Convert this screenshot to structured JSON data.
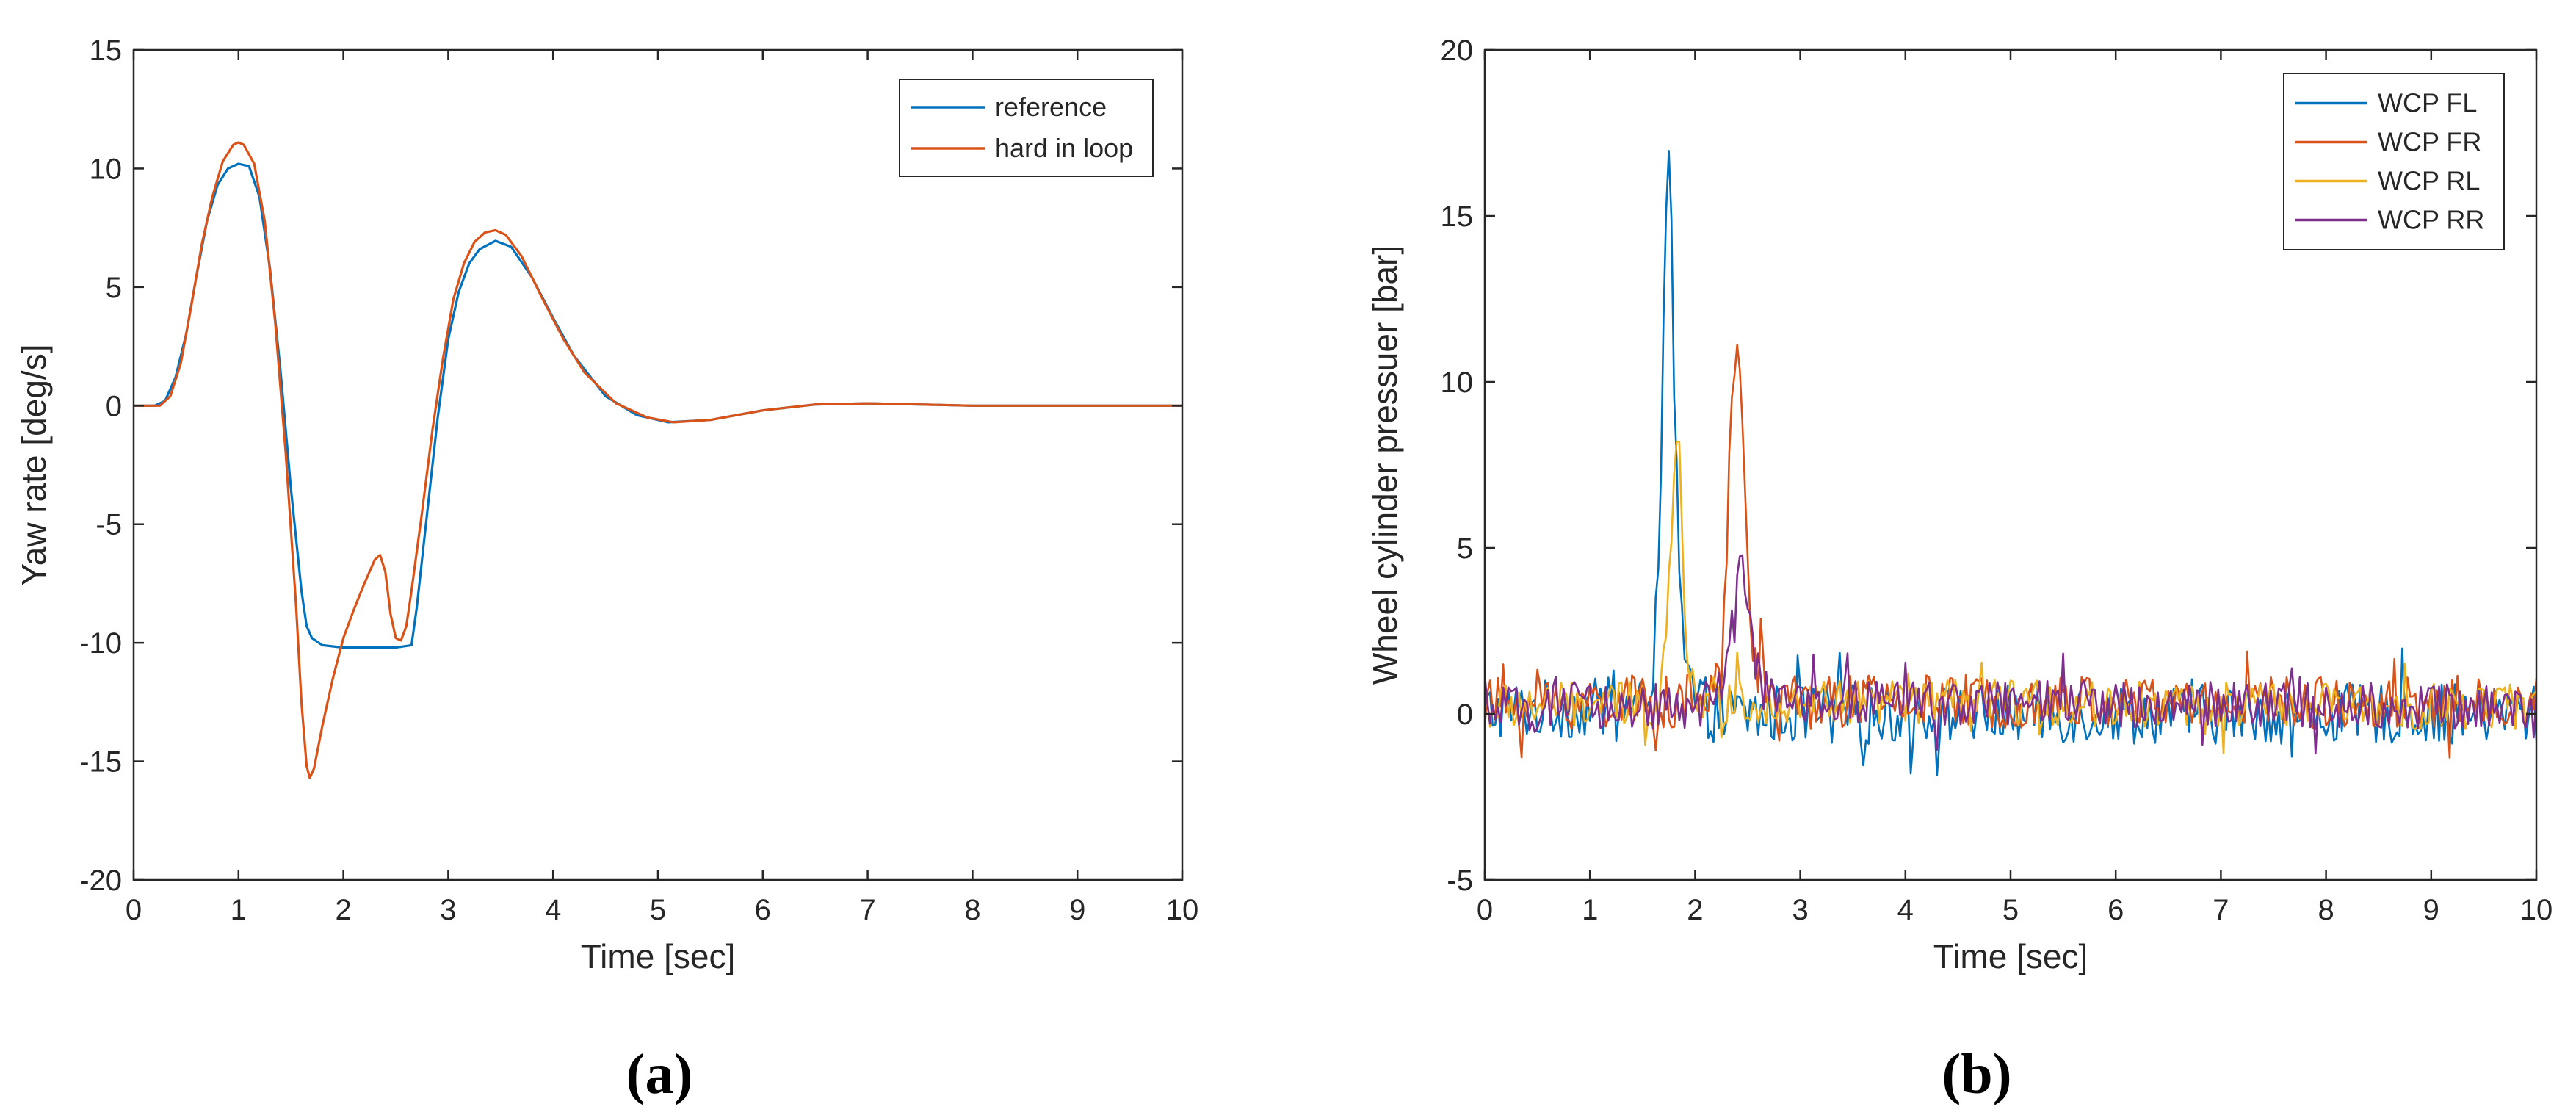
{
  "chart_data": [
    {
      "type": "line",
      "panel_label": "a",
      "xlabel": "Time [sec]",
      "ylabel": "Yaw rate [deg/s]",
      "xlim": [
        0,
        10
      ],
      "ylim": [
        -20,
        15
      ],
      "xticks": [
        0,
        1,
        2,
        3,
        4,
        5,
        6,
        7,
        8,
        9,
        10
      ],
      "yticks": [
        -20,
        -15,
        -10,
        -5,
        0,
        5,
        10,
        15
      ],
      "grid": false,
      "legend_position": "top-right",
      "series": [
        {
          "name": "reference",
          "color": "#0072BD",
          "points": [
            [
              0,
              0
            ],
            [
              0.2,
              0
            ],
            [
              0.3,
              0.2
            ],
            [
              0.4,
              1.2
            ],
            [
              0.5,
              3
            ],
            [
              0.6,
              5.5
            ],
            [
              0.7,
              7.8
            ],
            [
              0.8,
              9.3
            ],
            [
              0.9,
              10
            ],
            [
              1.0,
              10.2
            ],
            [
              1.1,
              10.1
            ],
            [
              1.2,
              8.8
            ],
            [
              1.3,
              5.8
            ],
            [
              1.4,
              1.5
            ],
            [
              1.5,
              -3.5
            ],
            [
              1.6,
              -7.8
            ],
            [
              1.65,
              -9.3
            ],
            [
              1.7,
              -9.8
            ],
            [
              1.8,
              -10.1
            ],
            [
              2.0,
              -10.2
            ],
            [
              2.3,
              -10.2
            ],
            [
              2.5,
              -10.2
            ],
            [
              2.65,
              -10.1
            ],
            [
              2.7,
              -8.5
            ],
            [
              2.8,
              -4.5
            ],
            [
              2.9,
              -0.5
            ],
            [
              3.0,
              2.8
            ],
            [
              3.1,
              4.8
            ],
            [
              3.2,
              6.0
            ],
            [
              3.3,
              6.6
            ],
            [
              3.45,
              6.95
            ],
            [
              3.6,
              6.7
            ],
            [
              3.8,
              5.4
            ],
            [
              4.0,
              3.7
            ],
            [
              4.2,
              2.1
            ],
            [
              4.5,
              0.4
            ],
            [
              4.8,
              -0.4
            ],
            [
              5.1,
              -0.7
            ],
            [
              5.5,
              -0.6
            ],
            [
              6.0,
              -0.2
            ],
            [
              6.5,
              0.05
            ],
            [
              7.0,
              0.1
            ],
            [
              7.5,
              0.05
            ],
            [
              8.0,
              0
            ],
            [
              10,
              0
            ]
          ]
        },
        {
          "name": "hard in loop",
          "color": "#D95319",
          "points": [
            [
              0,
              0
            ],
            [
              0.25,
              0
            ],
            [
              0.35,
              0.4
            ],
            [
              0.45,
              1.8
            ],
            [
              0.55,
              4.2
            ],
            [
              0.65,
              6.8
            ],
            [
              0.75,
              8.8
            ],
            [
              0.85,
              10.3
            ],
            [
              0.95,
              11.0
            ],
            [
              1.0,
              11.1
            ],
            [
              1.05,
              11.0
            ],
            [
              1.15,
              10.2
            ],
            [
              1.25,
              7.8
            ],
            [
              1.35,
              3.5
            ],
            [
              1.45,
              -2.0
            ],
            [
              1.55,
              -8.5
            ],
            [
              1.6,
              -12.5
            ],
            [
              1.65,
              -15.2
            ],
            [
              1.68,
              -15.7
            ],
            [
              1.72,
              -15.3
            ],
            [
              1.8,
              -13.5
            ],
            [
              1.9,
              -11.5
            ],
            [
              2.0,
              -9.8
            ],
            [
              2.1,
              -8.6
            ],
            [
              2.2,
              -7.5
            ],
            [
              2.3,
              -6.5
            ],
            [
              2.35,
              -6.3
            ],
            [
              2.4,
              -7.0
            ],
            [
              2.45,
              -8.8
            ],
            [
              2.5,
              -9.8
            ],
            [
              2.55,
              -9.9
            ],
            [
              2.6,
              -9.3
            ],
            [
              2.65,
              -7.8
            ],
            [
              2.75,
              -4.5
            ],
            [
              2.85,
              -1.0
            ],
            [
              2.95,
              2.0
            ],
            [
              3.05,
              4.5
            ],
            [
              3.15,
              6.0
            ],
            [
              3.25,
              6.9
            ],
            [
              3.35,
              7.3
            ],
            [
              3.45,
              7.4
            ],
            [
              3.55,
              7.2
            ],
            [
              3.7,
              6.3
            ],
            [
              3.9,
              4.5
            ],
            [
              4.1,
              2.8
            ],
            [
              4.3,
              1.4
            ],
            [
              4.6,
              0.1
            ],
            [
              4.9,
              -0.5
            ],
            [
              5.15,
              -0.7
            ],
            [
              5.5,
              -0.6
            ],
            [
              6.0,
              -0.2
            ],
            [
              6.5,
              0.05
            ],
            [
              7.0,
              0.1
            ],
            [
              7.5,
              0.05
            ],
            [
              8.0,
              0
            ],
            [
              10,
              0
            ]
          ]
        }
      ]
    },
    {
      "type": "line",
      "panel_label": "b",
      "xlabel": "Time [sec]",
      "ylabel": "Wheel cylinder pressuer [bar]",
      "xlim": [
        0,
        10
      ],
      "ylim": [
        -5,
        20
      ],
      "xticks": [
        0,
        1,
        2,
        3,
        4,
        5,
        6,
        7,
        8,
        9,
        10
      ],
      "yticks": [
        -5,
        0,
        5,
        10,
        15,
        20
      ],
      "grid": false,
      "legend_position": "top-right",
      "noise_sample_step_sec": 0.025,
      "series": [
        {
          "name": "WCP FL",
          "color": "#0072BD",
          "noise_amplitude_bar": 0.9,
          "noise_baseline_bar": 0.05,
          "points": [
            [
              0,
              0.1
            ],
            [
              1.5,
              0.2
            ],
            [
              1.6,
              1.5
            ],
            [
              1.65,
              5
            ],
            [
              1.7,
              11
            ],
            [
              1.73,
              15.5
            ],
            [
              1.75,
              16.4
            ],
            [
              1.77,
              15
            ],
            [
              1.8,
              10
            ],
            [
              1.85,
              4
            ],
            [
              1.9,
              1.5
            ],
            [
              2.0,
              0.4
            ],
            [
              2.2,
              0
            ],
            [
              10,
              0
            ]
          ]
        },
        {
          "name": "WCP FR",
          "color": "#D95319",
          "noise_amplitude_bar": 0.8,
          "noise_baseline_bar": 0.35,
          "points": [
            [
              0,
              0.3
            ],
            [
              2.15,
              0.4
            ],
            [
              2.25,
              1.5
            ],
            [
              2.3,
              5
            ],
            [
              2.35,
              9.5
            ],
            [
              2.4,
              11.3
            ],
            [
              2.43,
              10.5
            ],
            [
              2.47,
              6.5
            ],
            [
              2.52,
              3
            ],
            [
              2.6,
              1.3
            ],
            [
              2.75,
              0.5
            ],
            [
              3.0,
              0.4
            ],
            [
              10,
              0.35
            ]
          ]
        },
        {
          "name": "WCP RL",
          "color": "#EDB120",
          "noise_amplitude_bar": 0.7,
          "noise_baseline_bar": 0.2,
          "points": [
            [
              0,
              0.2
            ],
            [
              1.65,
              0.3
            ],
            [
              1.72,
              2.5
            ],
            [
              1.78,
              6
            ],
            [
              1.82,
              9
            ],
            [
              1.86,
              7
            ],
            [
              1.9,
              3
            ],
            [
              1.96,
              1
            ],
            [
              2.1,
              0.4
            ],
            [
              10,
              0.2
            ]
          ]
        },
        {
          "name": "WCP RR",
          "color": "#7E2F8E",
          "noise_amplitude_bar": 0.7,
          "noise_baseline_bar": 0.2,
          "points": [
            [
              0,
              0.1
            ],
            [
              2.2,
              0.3
            ],
            [
              2.32,
              1.5
            ],
            [
              2.38,
              3.5
            ],
            [
              2.43,
              5
            ],
            [
              2.47,
              4
            ],
            [
              2.53,
              2
            ],
            [
              2.62,
              0.9
            ],
            [
              2.8,
              0.4
            ],
            [
              10,
              0.2
            ]
          ]
        }
      ]
    }
  ],
  "captions": {
    "a": "(a)",
    "b": "(b)"
  }
}
